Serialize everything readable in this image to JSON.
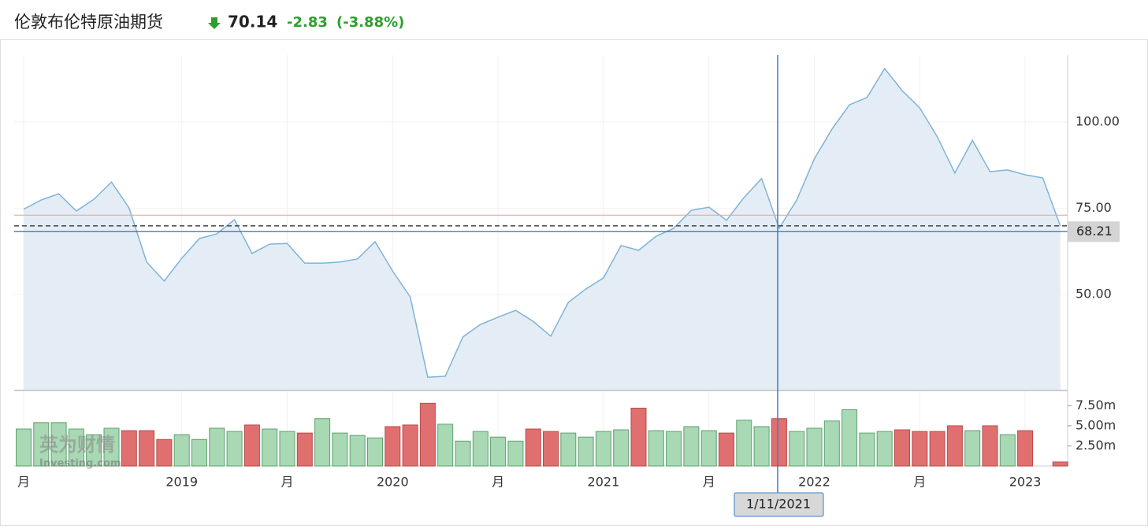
{
  "header": {
    "title": "伦敦布伦特原油期货",
    "price": "70.14",
    "change": "-2.83",
    "change_pct": "(-3.88%)"
  },
  "chart_data": {
    "type": "area",
    "categories": [
      "月",
      null,
      null,
      null,
      null,
      null,
      null,
      null,
      null,
      "2019",
      null,
      null,
      null,
      null,
      null,
      "月",
      null,
      null,
      null,
      null,
      null,
      "2020",
      null,
      null,
      null,
      null,
      null,
      "月",
      null,
      null,
      null,
      null,
      null,
      "2021",
      null,
      null,
      null,
      null,
      null,
      "月",
      null,
      null,
      null,
      null,
      null,
      "2022",
      null,
      null,
      null,
      null,
      null,
      "月",
      null,
      null,
      null,
      null,
      null,
      "2023",
      null,
      null
    ],
    "series": [
      {
        "color": "#7eb3d8",
        "values": [
          74.7,
          77.4,
          79.2,
          74.2,
          77.6,
          82.6,
          75.1,
          59.4,
          53.9,
          60.5,
          66.2,
          67.6,
          71.7,
          61.9,
          64.6,
          64.8,
          59.1,
          59.1,
          59.4,
          60.3,
          65.3,
          56.8,
          49.3,
          26.0,
          26.3,
          37.7,
          41.3,
          43.4,
          45.4,
          42.2,
          37.9,
          47.7,
          51.6,
          54.8,
          64.2,
          62.8,
          66.9,
          69.2,
          74.4,
          75.3,
          71.5,
          78.1,
          83.6,
          69.2,
          77.4,
          89.3,
          97.9,
          105.0,
          107.1,
          115.5,
          109.1,
          104.1,
          95.7,
          85.2,
          94.7,
          85.6,
          86.1,
          84.7,
          83.8,
          69.9
        ]
      }
    ],
    "ylim": [
      22.4,
      119.4
    ],
    "yticks": [
      {
        "value": 50,
        "label": "50.00"
      },
      {
        "value": 75,
        "label": "75.00"
      },
      {
        "value": 100,
        "label": "100.00"
      }
    ],
    "reference_lines": [
      {
        "value": 73.0,
        "color": "#f0a0a0",
        "style": "solid"
      },
      {
        "value": 69.9,
        "color": "#444444",
        "style": "dashed"
      },
      {
        "value": 68.21,
        "color": "#3b6ea8",
        "style": "solid"
      }
    ],
    "current_value": 68.21,
    "crosshair": "1/11/2021",
    "volume": {
      "values": [
        4.6,
        5.4,
        5.4,
        4.6,
        3.9,
        4.7,
        4.4,
        4.4,
        3.3,
        3.9,
        3.3,
        4.7,
        4.3,
        5.1,
        4.6,
        4.3,
        4.1,
        5.9,
        4.1,
        3.8,
        3.5,
        4.9,
        5.1,
        7.8,
        5.2,
        3.1,
        4.3,
        3.6,
        3.1,
        4.6,
        4.3,
        4.1,
        3.6,
        4.3,
        4.5,
        7.2,
        4.4,
        4.3,
        4.9,
        4.4,
        4.1,
        5.7,
        4.9,
        5.9,
        4.3,
        4.7,
        5.6,
        7.0,
        4.1,
        4.3,
        4.5,
        4.3,
        4.3,
        5.0,
        4.4,
        5.0,
        3.9,
        4.4,
        null,
        0.5
      ],
      "colors": [
        "#a8d8b4",
        "#a8d8b4",
        "#a8d8b4",
        "#a8d8b4",
        "#a8d8b4",
        "#a8d8b4",
        "#e07070",
        "#e07070",
        "#e07070",
        "#a8d8b4",
        "#a8d8b4",
        "#a8d8b4",
        "#a8d8b4",
        "#e07070",
        "#a8d8b4",
        "#a8d8b4",
        "#e07070",
        "#a8d8b4",
        "#a8d8b4",
        "#a8d8b4",
        "#a8d8b4",
        "#e07070",
        "#e07070",
        "#e07070",
        "#a8d8b4",
        "#a8d8b4",
        "#a8d8b4",
        "#a8d8b4",
        "#a8d8b4",
        "#e07070",
        "#e07070",
        "#a8d8b4",
        "#a8d8b4",
        "#a8d8b4",
        "#a8d8b4",
        "#e07070",
        "#a8d8b4",
        "#a8d8b4",
        "#a8d8b4",
        "#a8d8b4",
        "#e07070",
        "#a8d8b4",
        "#a8d8b4",
        "#e07070",
        "#a8d8b4",
        "#a8d8b4",
        "#a8d8b4",
        "#a8d8b4",
        "#a8d8b4",
        "#a8d8b4",
        "#e07070",
        "#e07070",
        "#e07070",
        "#e07070",
        "#a8d8b4",
        "#e07070",
        "#a8d8b4",
        "#e07070",
        "#a8d8b4",
        "#e07070"
      ],
      "ylim": [
        0,
        9.3
      ],
      "yticks": [
        {
          "value": 2.5,
          "label": "2.50m"
        },
        {
          "value": 5,
          "label": "5.00m"
        },
        {
          "value": 7.5,
          "label": "7.50m"
        }
      ]
    },
    "watermark": {
      "cn": "英为财情",
      "en": "Investing.com"
    }
  }
}
